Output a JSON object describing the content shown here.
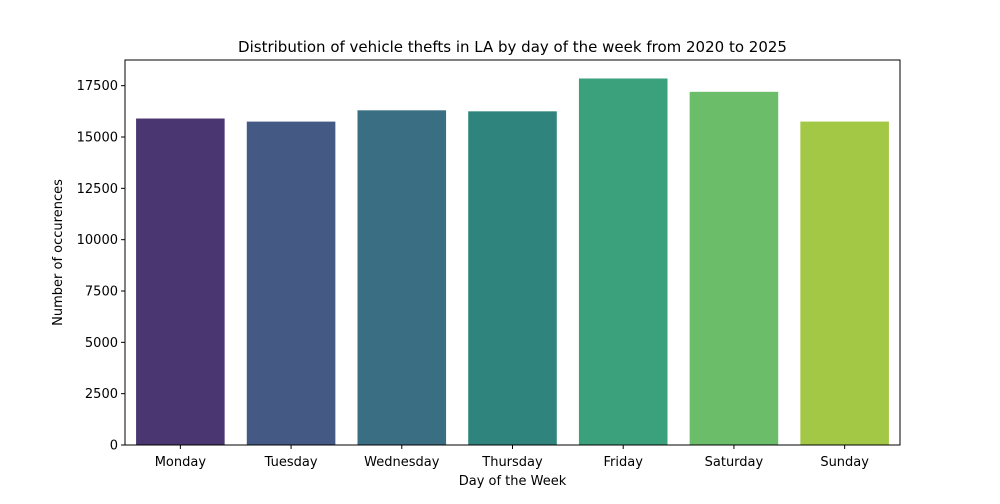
{
  "chart_data": {
    "type": "bar",
    "title": "Distribution of vehicle thefts in LA by day of the week from 2020 to 2025",
    "xlabel": "Day of the Week",
    "ylabel": "Number of occurences",
    "categories": [
      "Monday",
      "Tuesday",
      "Wednesday",
      "Thursday",
      "Friday",
      "Saturday",
      "Sunday"
    ],
    "values": [
      15900,
      15750,
      16300,
      16250,
      17850,
      17200,
      15750
    ],
    "colors": [
      "#4a3670",
      "#455985",
      "#3a6f83",
      "#2f847d",
      "#3aa17c",
      "#6bbd6a",
      "#a3c846"
    ],
    "ylim": [
      0,
      18750
    ],
    "yticks": [
      0,
      2500,
      5000,
      7500,
      10000,
      12500,
      15000,
      17500
    ],
    "grid": false,
    "legend": "none"
  }
}
